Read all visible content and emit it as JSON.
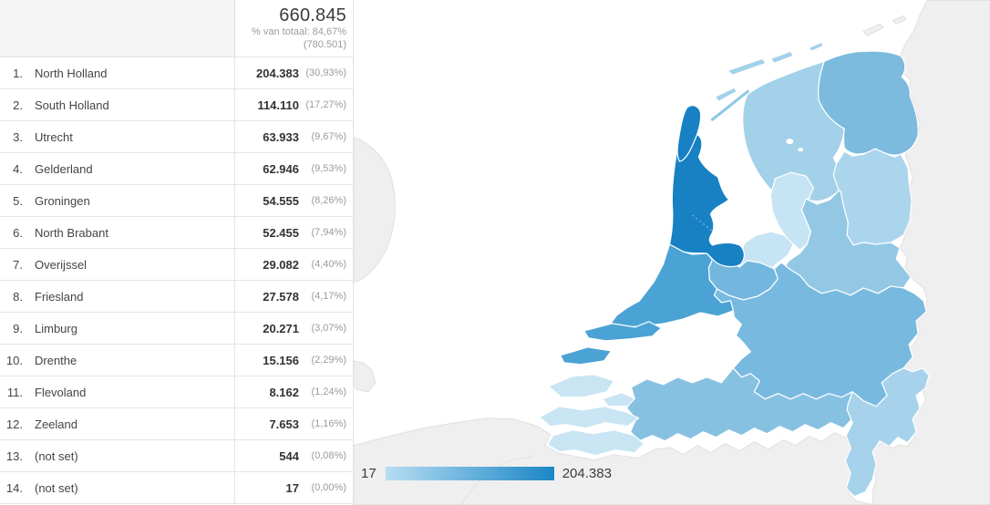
{
  "summary": {
    "total": "660.845",
    "percent_of_total": "% van totaal: 84,67%",
    "grand_total": "(780.501)"
  },
  "table": {
    "rows": [
      {
        "rank": "1.",
        "region": "North Holland",
        "value": "204.383",
        "percent": "(30,93%)"
      },
      {
        "rank": "2.",
        "region": "South Holland",
        "value": "114.110",
        "percent": "(17,27%)"
      },
      {
        "rank": "3.",
        "region": "Utrecht",
        "value": "63.933",
        "percent": "(9,67%)"
      },
      {
        "rank": "4.",
        "region": "Gelderland",
        "value": "62.946",
        "percent": "(9,53%)"
      },
      {
        "rank": "5.",
        "region": "Groningen",
        "value": "54.555",
        "percent": "(8,26%)"
      },
      {
        "rank": "6.",
        "region": "North Brabant",
        "value": "52.455",
        "percent": "(7,94%)"
      },
      {
        "rank": "7.",
        "region": "Overijssel",
        "value": "29.082",
        "percent": "(4,40%)"
      },
      {
        "rank": "8.",
        "region": "Friesland",
        "value": "27.578",
        "percent": "(4,17%)"
      },
      {
        "rank": "9.",
        "region": "Limburg",
        "value": "20.271",
        "percent": "(3,07%)"
      },
      {
        "rank": "10.",
        "region": "Drenthe",
        "value": "15.156",
        "percent": "(2,29%)"
      },
      {
        "rank": "11.",
        "region": "Flevoland",
        "value": "8.162",
        "percent": "(1,24%)"
      },
      {
        "rank": "12.",
        "region": "Zeeland",
        "value": "7.653",
        "percent": "(1,16%)"
      },
      {
        "rank": "13.",
        "region": "(not set)",
        "value": "544",
        "percent": "(0,08%)"
      },
      {
        "rank": "14.",
        "region": "(not set)",
        "value": "17",
        "percent": "(0,00%)"
      }
    ]
  },
  "legend": {
    "min": "17",
    "max": "204.383"
  },
  "chart_data": {
    "type": "heatmap",
    "subtype": "geo_choropleth",
    "area": "Netherlands provinces",
    "categories": [
      "North Holland",
      "South Holland",
      "Utrecht",
      "Gelderland",
      "Groningen",
      "North Brabant",
      "Overijssel",
      "Friesland",
      "Limburg",
      "Drenthe",
      "Flevoland",
      "Zeeland",
      "(not set)",
      "(not set)"
    ],
    "values": [
      204383,
      114110,
      63933,
      62946,
      54555,
      52455,
      29082,
      27578,
      20271,
      15156,
      8162,
      7653,
      544,
      17
    ],
    "percent_of_total": [
      "30,93%",
      "17,27%",
      "9,67%",
      "9,53%",
      "8,26%",
      "7,94%",
      "4,40%",
      "4,17%",
      "3,07%",
      "2,29%",
      "1,24%",
      "1,16%",
      "0,08%",
      "0,00%"
    ],
    "total": 660845,
    "total_display": "660.845",
    "total_percent_of_grand": "84,67%",
    "grand_total": 780501,
    "grand_total_display": "780.501",
    "legend": {
      "min": 17,
      "max": 204383,
      "min_display": "17",
      "max_display": "204.383",
      "position": "bottom-left"
    },
    "color_scale": {
      "low": "#b7ddf2",
      "high": "#1b86c6"
    },
    "region_colors": {
      "north-holland": "#1781c4",
      "south-holland": "#4ba2d4",
      "utrecht": "#74b7de",
      "gelderland": "#78b9df",
      "groningen": "#7cbade",
      "north-brabant": "#87c1e2",
      "overijssel": "#93c8e5",
      "friesland": "#a3d1ea",
      "limburg": "#a6d3eb",
      "drenthe": "#abd5ec",
      "flevoland": "#c6e4f4",
      "zeeland": "#c9e5f4"
    }
  },
  "map_colors": {
    "sea": "#ffffff",
    "neutral_land": "#efefef",
    "neutral_border": "#e0e0e0",
    "province_border": "#ffffff",
    "dike": "#8ec6e6",
    "dashed_border": "#6aaed6"
  }
}
